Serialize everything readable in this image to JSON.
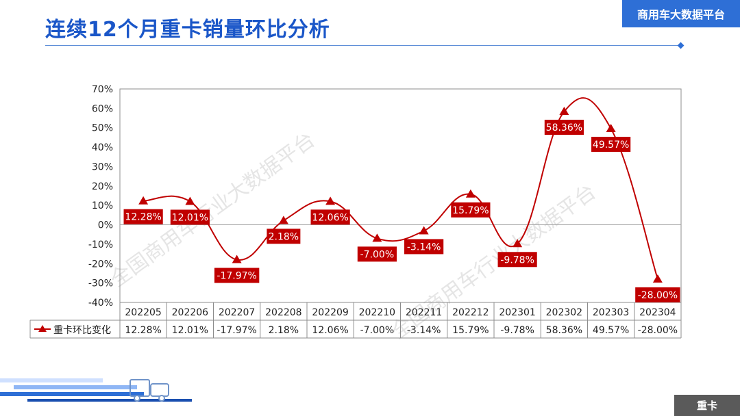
{
  "header": {
    "title": "连续12个月重卡销量环比分析",
    "brand": "商用车大数据平台",
    "section_tag": "重卡"
  },
  "watermarks": [
    "全国商用车行业大数据平台",
    "全国商用车行业大数据平台"
  ],
  "colors": {
    "series": "#c00000",
    "title": "#1a56c8",
    "brand_bg": "#2e6fd6",
    "tag_bg": "#5a5a5a"
  },
  "chart_data": {
    "type": "line",
    "categories": [
      "202205",
      "202206",
      "202207",
      "202208",
      "202209",
      "202210",
      "202211",
      "202212",
      "202301",
      "202302",
      "202303",
      "202304"
    ],
    "series": [
      {
        "name": "重卡环比变化",
        "values": [
          12.28,
          12.01,
          -17.97,
          2.18,
          12.06,
          -7.0,
          -3.14,
          15.79,
          -9.78,
          58.36,
          49.57,
          -28.0
        ],
        "labels": [
          "12.28%",
          "12.01%",
          "-17.97%",
          "2.18%",
          "12.06%",
          "-7.00%",
          "-3.14%",
          "15.79%",
          "-9.78%",
          "58.36%",
          "49.57%",
          "-28.00%"
        ],
        "marker": "triangle"
      }
    ],
    "ylim": [
      -40,
      70
    ],
    "yticks": [
      "70%",
      "60%",
      "50%",
      "40%",
      "30%",
      "20%",
      "10%",
      "0%",
      "-10%",
      "-20%",
      "-30%",
      "-40%"
    ],
    "smooth": true,
    "data_table": true
  }
}
